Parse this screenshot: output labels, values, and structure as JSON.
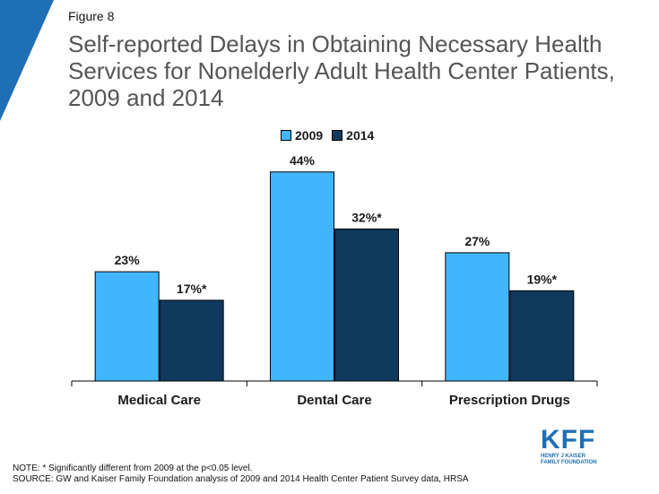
{
  "figure_label": "Figure 8",
  "title": "Self-reported Delays in Obtaining Necessary Health Services for Nonelderly Adult Health Center Patients, 2009 and 2014",
  "legend": [
    {
      "name": "2009",
      "color": "#41b6ff"
    },
    {
      "name": "2014",
      "color": "#0f3a5e"
    }
  ],
  "chart_data": {
    "type": "bar",
    "categories": [
      "Medical Care",
      "Dental Care",
      "Prescription Drugs"
    ],
    "series": [
      {
        "name": "2009",
        "values": [
          23,
          44,
          27
        ],
        "labels": [
          "23%",
          "44%",
          "27%"
        ],
        "color": "#41b6ff"
      },
      {
        "name": "2014",
        "values": [
          17,
          32,
          19
        ],
        "labels": [
          "17%*",
          "32%*",
          "19%*"
        ],
        "color": "#0f3a5e"
      }
    ],
    "ylim": [
      0,
      50
    ],
    "grid": false,
    "legend_position": "top-center"
  },
  "notes": {
    "note": "NOTE: * Significantly different from 2009 at the p<0.05 level.",
    "source": "SOURCE: GW and Kaiser Family Foundation analysis of 2009 and 2014 Health Center Patient Survey data, HRSA"
  },
  "logo": {
    "mark": "KFF",
    "line1": "HENRY J KAISER",
    "line2": "FAMILY FOUNDATION"
  }
}
